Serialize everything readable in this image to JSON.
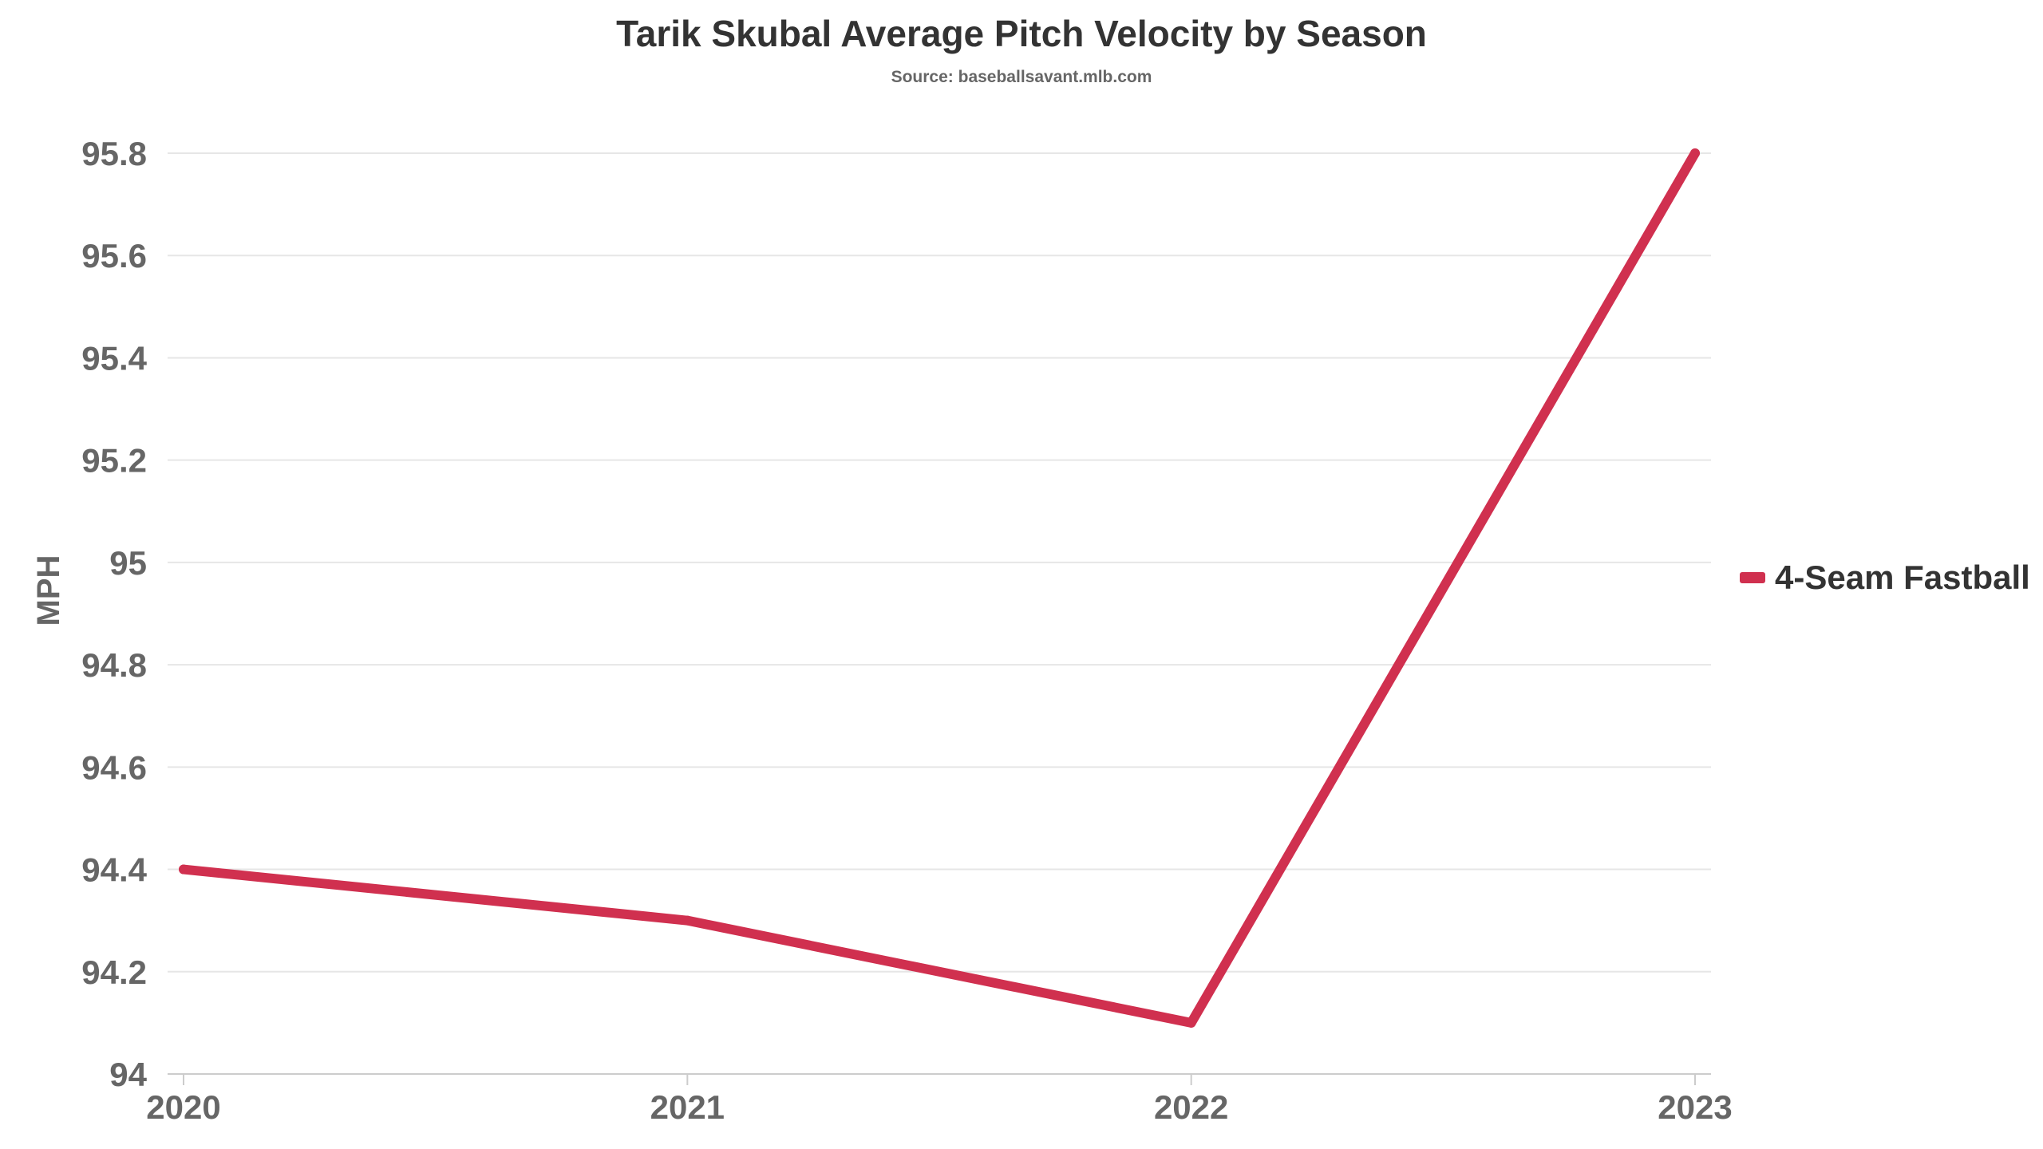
{
  "chart_data": {
    "type": "line",
    "title": "Tarik Skubal Average Pitch Velocity by Season",
    "subtitle": "Source: baseballsavant.mlb.com",
    "xlabel": "",
    "ylabel": "MPH",
    "categories": [
      "2020",
      "2021",
      "2022",
      "2023"
    ],
    "series": [
      {
        "name": "4-Seam Fastball",
        "color": "#d0304f",
        "values": [
          94.4,
          94.3,
          94.1,
          95.8
        ]
      }
    ],
    "ylim": [
      94,
      95.8
    ],
    "yticks": [
      94,
      94.2,
      94.4,
      94.6,
      94.8,
      95,
      95.2,
      95.4,
      95.6,
      95.8
    ],
    "ytick_labels": [
      "94",
      "94.2",
      "94.4",
      "94.6",
      "94.8",
      "95",
      "95.2",
      "95.4",
      "95.6",
      "95.8"
    ],
    "grid": true,
    "legend_position": "right"
  }
}
